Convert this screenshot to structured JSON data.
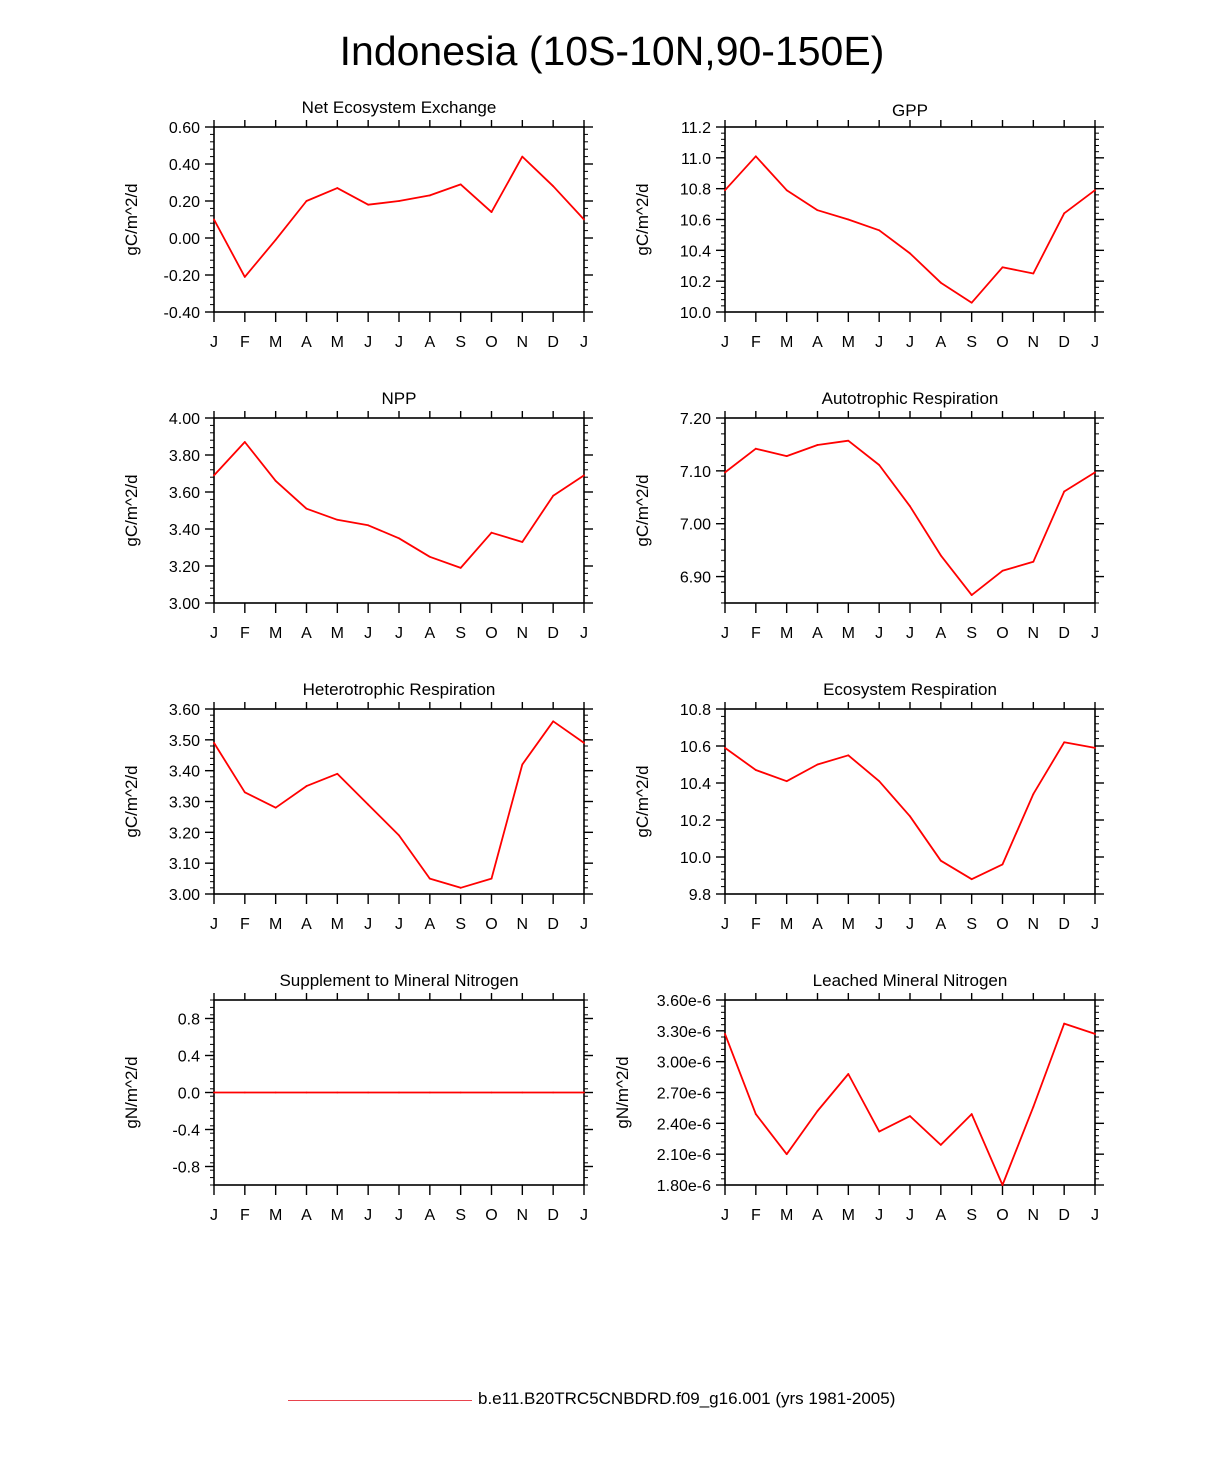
{
  "title": "Indonesia (10S-10N,90-150E)",
  "legend": {
    "label": "b.e11.B20TRC5CNBDRD.f09_g16.001 (yrs 1981-2005)",
    "color": "#e8434d"
  },
  "line_color": "#ff0000",
  "chart_data": [
    {
      "type": "line",
      "title": "Net Ecosystem Exchange",
      "ylabel": "gC/m^2/d",
      "categories": [
        "J",
        "F",
        "M",
        "A",
        "M",
        "J",
        "J",
        "A",
        "S",
        "O",
        "N",
        "D",
        "J"
      ],
      "values": [
        0.1,
        -0.21,
        -0.01,
        0.2,
        0.27,
        0.18,
        0.2,
        0.23,
        0.29,
        0.14,
        0.44,
        0.28,
        0.1
      ],
      "ylim": [
        -0.4,
        0.6
      ],
      "yticks": [
        -0.4,
        -0.2,
        0.0,
        0.2,
        0.4,
        0.6
      ],
      "yticklabels": [
        "-0.40",
        "-0.20",
        "0.00",
        "0.20",
        "0.40",
        "0.60"
      ]
    },
    {
      "type": "line",
      "title": "GPP",
      "ylabel": "gC/m^2/d",
      "categories": [
        "J",
        "F",
        "M",
        "A",
        "M",
        "J",
        "J",
        "A",
        "S",
        "O",
        "N",
        "D",
        "J"
      ],
      "values": [
        10.79,
        11.01,
        10.79,
        10.66,
        10.6,
        10.53,
        10.38,
        10.19,
        10.06,
        10.29,
        10.25,
        10.64,
        10.79
      ],
      "ylim": [
        10.0,
        11.2
      ],
      "yticks": [
        10.0,
        10.2,
        10.4,
        10.6,
        10.8,
        11.0,
        11.2
      ],
      "yticklabels": [
        "10.0",
        "10.2",
        "10.4",
        "10.6",
        "10.8",
        "11.0",
        "11.2"
      ]
    },
    {
      "type": "line",
      "title": "NPP",
      "ylabel": "gC/m^2/d",
      "categories": [
        "J",
        "F",
        "M",
        "A",
        "M",
        "J",
        "J",
        "A",
        "S",
        "O",
        "N",
        "D",
        "J"
      ],
      "values": [
        3.69,
        3.87,
        3.66,
        3.51,
        3.45,
        3.42,
        3.35,
        3.25,
        3.19,
        3.38,
        3.33,
        3.58,
        3.69
      ],
      "ylim": [
        3.0,
        4.0
      ],
      "yticks": [
        3.0,
        3.2,
        3.4,
        3.6,
        3.8,
        4.0
      ],
      "yticklabels": [
        "3.00",
        "3.20",
        "3.40",
        "3.60",
        "3.80",
        "4.00"
      ]
    },
    {
      "type": "line",
      "title": "Autotrophic Respiration",
      "ylabel": "gC/m^2/d",
      "categories": [
        "J",
        "F",
        "M",
        "A",
        "M",
        "J",
        "J",
        "A",
        "S",
        "O",
        "N",
        "D",
        "J"
      ],
      "values": [
        7.097,
        7.142,
        7.128,
        7.149,
        7.157,
        7.111,
        7.033,
        6.94,
        6.865,
        6.911,
        6.928,
        7.061,
        7.097
      ],
      "ylim": [
        6.85,
        7.2
      ],
      "yticks": [
        6.9,
        7.0,
        7.1,
        7.2
      ],
      "yticklabels": [
        "6.90",
        "7.00",
        "7.10",
        "7.20"
      ]
    },
    {
      "type": "line",
      "title": "Heterotrophic Respiration",
      "ylabel": "gC/m^2/d",
      "categories": [
        "J",
        "F",
        "M",
        "A",
        "M",
        "J",
        "J",
        "A",
        "S",
        "O",
        "N",
        "D",
        "J"
      ],
      "values": [
        3.49,
        3.33,
        3.28,
        3.35,
        3.39,
        3.29,
        3.19,
        3.05,
        3.02,
        3.05,
        3.42,
        3.56,
        3.49
      ],
      "ylim": [
        3.0,
        3.6
      ],
      "yticks": [
        3.0,
        3.1,
        3.2,
        3.3,
        3.4,
        3.5,
        3.6
      ],
      "yticklabels": [
        "3.00",
        "3.10",
        "3.20",
        "3.30",
        "3.40",
        "3.50",
        "3.60"
      ]
    },
    {
      "type": "line",
      "title": "Ecosystem Respiration",
      "ylabel": "gC/m^2/d",
      "categories": [
        "J",
        "F",
        "M",
        "A",
        "M",
        "J",
        "J",
        "A",
        "S",
        "O",
        "N",
        "D",
        "J"
      ],
      "values": [
        10.59,
        10.47,
        10.41,
        10.5,
        10.55,
        10.41,
        10.22,
        9.98,
        9.88,
        9.96,
        10.34,
        10.62,
        10.59
      ],
      "ylim": [
        9.8,
        10.8
      ],
      "yticks": [
        9.8,
        10.0,
        10.2,
        10.4,
        10.6,
        10.8
      ],
      "yticklabels": [
        "9.8",
        "10.0",
        "10.2",
        "10.4",
        "10.6",
        "10.8"
      ]
    },
    {
      "type": "line",
      "title": "Supplement to Mineral Nitrogen",
      "ylabel": "gN/m^2/d",
      "categories": [
        "J",
        "F",
        "M",
        "A",
        "M",
        "J",
        "J",
        "A",
        "S",
        "O",
        "N",
        "D",
        "J"
      ],
      "values": [
        0,
        0,
        0,
        0,
        0,
        0,
        0,
        0,
        0,
        0,
        0,
        0,
        0
      ],
      "ylim": [
        -1.0,
        1.0
      ],
      "yticks": [
        -0.8,
        -0.4,
        0.0,
        0.4,
        0.8
      ],
      "yticklabels": [
        "-0.8",
        "-0.4",
        "0.0",
        "0.4",
        "0.8"
      ]
    },
    {
      "type": "line",
      "title": "Leached Mineral Nitrogen",
      "ylabel": "gN/m^2/d",
      "categories": [
        "J",
        "F",
        "M",
        "A",
        "M",
        "J",
        "J",
        "A",
        "S",
        "O",
        "N",
        "D",
        "J"
      ],
      "values": [
        3.27e-06,
        2.49e-06,
        2.1e-06,
        2.52e-06,
        2.88e-06,
        2.32e-06,
        2.47e-06,
        2.19e-06,
        2.49e-06,
        1.8e-06,
        2.56e-06,
        3.37e-06,
        3.27e-06
      ],
      "ylim": [
        1.8e-06,
        3.6e-06
      ],
      "yticks": [
        1.8e-06,
        2.1e-06,
        2.4e-06,
        2.7e-06,
        3e-06,
        3.3e-06,
        3.6e-06
      ],
      "yticklabels": [
        "1.80e-6",
        "2.10e-6",
        "2.40e-6",
        "2.70e-6",
        "3.00e-6",
        "3.30e-6",
        "3.60e-6"
      ]
    }
  ]
}
